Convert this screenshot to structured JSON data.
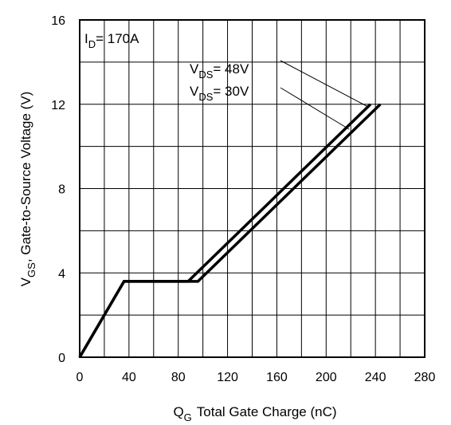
{
  "chart_data": {
    "type": "line",
    "xlabel_main": "Q",
    "xlabel_sub": "G",
    "xlabel_rest": "Total Gate Charge (nC)",
    "ylabel_main": "V",
    "ylabel_sub": "GS",
    "ylabel_rest": ", Gate-to-Source Voltage (V)",
    "xlim": [
      0,
      280
    ],
    "ylim": [
      0,
      16
    ],
    "xticks": [
      "0",
      "40",
      "80",
      "120",
      "160",
      "200",
      "240",
      "280"
    ],
    "yticks": [
      "0",
      "4",
      "8",
      "12",
      "16"
    ],
    "grid": true,
    "annotation": {
      "main": "I",
      "sub": "D",
      "rest": "= 170A"
    },
    "series": [
      {
        "name": "V_DS = 48V",
        "label_main": "V",
        "label_sub": "DS",
        "label_rest": "= 48V",
        "x": [
          0,
          36,
          88,
          236
        ],
        "y": [
          0,
          3.6,
          3.6,
          12
        ]
      },
      {
        "name": "V_DS = 30V",
        "label_main": "V",
        "label_sub": "DS",
        "label_rest": "= 30V",
        "x": [
          0,
          36,
          96,
          244
        ],
        "y": [
          0,
          3.6,
          3.6,
          12
        ]
      }
    ]
  }
}
